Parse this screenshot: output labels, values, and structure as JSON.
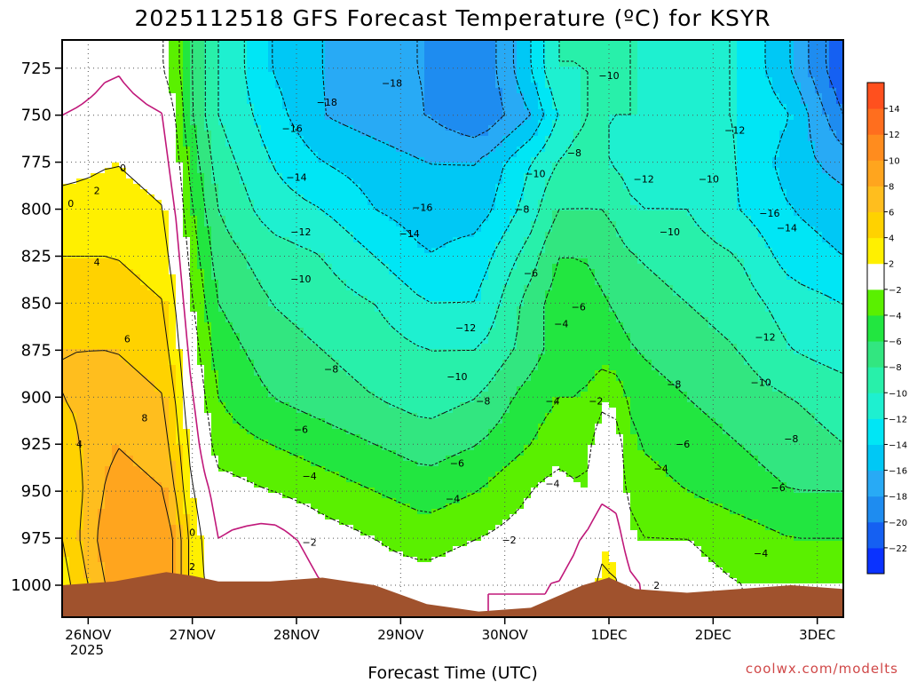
{
  "chart_data": {
    "type": "heatmap",
    "title": "2025112518 GFS Forecast Temperature (ºC) for KSYR",
    "xlabel": "Forecast Time (UTC)",
    "ylabel": "",
    "credit": "coolwx.com/modelts",
    "x_ticks": [
      "26NOV",
      "27NOV",
      "28NOV",
      "29NOV",
      "30NOV",
      "1DEC",
      "2DEC",
      "3DEC"
    ],
    "x_tick_hours": [
      6,
      30,
      54,
      78,
      102,
      126,
      150,
      174
    ],
    "x_year_label": "2025",
    "x_range_hours": [
      0,
      180
    ],
    "y_ticks": [
      725,
      750,
      775,
      800,
      825,
      850,
      875,
      900,
      925,
      950,
      975,
      1000
    ],
    "y_range_hpa": [
      710,
      1017
    ],
    "y_axis_inverted": true,
    "grid": true,
    "colorbar": {
      "levels": [
        -24,
        -22,
        -20,
        -18,
        -16,
        -14,
        -12,
        -10,
        -8,
        -6,
        -4,
        -2,
        2,
        4,
        6,
        8,
        10,
        12,
        14,
        16
      ],
      "tick_labels": [
        "-22",
        "-20",
        "-18",
        "-16",
        "-14",
        "-12",
        "-10",
        "-8",
        "-6",
        "-4",
        "-2",
        "2",
        "4",
        "6",
        "8",
        "10",
        "12",
        "14"
      ],
      "colors": [
        "#0a32ff",
        "#1560f2",
        "#1e8cf0",
        "#28aaf5",
        "#00c8f5",
        "#00e6f5",
        "#1ef0d0",
        "#28f0aa",
        "#32e680",
        "#22e640",
        "#5af000",
        "#ffffff",
        "#fff000",
        "#ffd200",
        "#ffbe1e",
        "#ffa51e",
        "#ff8c1e",
        "#ff6e1e",
        "#ff501e"
      ],
      "placement": "right"
    },
    "hours": [
      0,
      12,
      24,
      30,
      36,
      48,
      60,
      72,
      84,
      96,
      108,
      114,
      120,
      126,
      132,
      144,
      156,
      168,
      180
    ],
    "pressure_levels": [
      725,
      750,
      775,
      800,
      825,
      850,
      875,
      900,
      925,
      950,
      975,
      1000
    ],
    "temperature": [
      [
        -2,
        0,
        -2,
        -6,
        -10,
        -14,
        -16,
        -18,
        -18,
        -20,
        -14,
        -10,
        -10,
        -10,
        -10,
        -12,
        -12,
        -16,
        -22
      ],
      [
        0,
        1,
        0,
        -6,
        -10,
        -13,
        -16,
        -17,
        -18,
        -20,
        -16,
        -12,
        -10,
        -10,
        -10,
        -12,
        -12,
        -14,
        -20
      ],
      [
        1,
        2,
        1,
        -5,
        -9,
        -12,
        -14,
        -15,
        -16,
        -16,
        -12,
        -10,
        -9,
        -10,
        -11,
        -11,
        -12,
        -15,
        -17
      ],
      [
        3,
        3,
        2,
        -4,
        -8,
        -11,
        -12,
        -14,
        -15,
        -15,
        -11,
        -8,
        -8,
        -8,
        -10,
        -10,
        -12,
        -14,
        -15
      ],
      [
        4,
        4,
        3,
        -3,
        -7,
        -9,
        -10,
        -12,
        -14,
        -13,
        -9,
        -6,
        -6,
        -7,
        -8,
        -9,
        -10,
        -13,
        -14
      ],
      [
        5,
        5,
        4,
        -2,
        -6,
        -8,
        -9,
        -10,
        -12,
        -12,
        -7,
        -5,
        -5,
        -6,
        -7,
        -8,
        -9,
        -11,
        -12
      ],
      [
        6,
        6,
        5,
        -1,
        -5,
        -7,
        -8,
        -9,
        -10,
        -10,
        -7,
        -5,
        -5,
        -5,
        -6,
        -7,
        -8,
        -10,
        -11
      ],
      [
        6,
        7,
        6,
        0,
        -4,
        -6,
        -7,
        -8,
        -9,
        -8,
        -5,
        -4,
        -4,
        -2,
        -5,
        -6,
        -7,
        -8,
        -9
      ],
      [
        5,
        8,
        7,
        1,
        -3,
        -4,
        -5,
        -6,
        -7,
        -6,
        -4,
        -3,
        -3,
        0,
        -4,
        -5,
        -6,
        -7,
        -8
      ],
      [
        4,
        9,
        8,
        2,
        -1,
        -2,
        -3,
        -4,
        -5,
        -4,
        -2,
        -1,
        -2,
        0,
        -3,
        -4,
        -5,
        -6,
        -6
      ],
      [
        4,
        10,
        10,
        3,
        0,
        1,
        -1,
        -2,
        -3,
        -2,
        -1,
        -1,
        0,
        2,
        -2,
        -2,
        -3,
        -4,
        -4
      ],
      [
        3,
        9,
        10,
        3,
        1,
        2,
        0,
        -1,
        -1,
        0,
        0,
        0,
        1,
        3,
        0,
        -1,
        -2,
        -2,
        -2
      ]
    ],
    "surface_pressure_hpa": [
      1000,
      998,
      993,
      995,
      998,
      998,
      996,
      1000,
      1010,
      1014,
      1012,
      1006,
      1000,
      996,
      1002,
      1004,
      1002,
      1000,
      1002
    ],
    "contour_labels": [
      {
        "text": "0",
        "h": 14,
        "p": 778
      },
      {
        "text": "2",
        "h": 8,
        "p": 790
      },
      {
        "text": "0",
        "h": 2,
        "p": 797
      },
      {
        "text": "4",
        "h": 8,
        "p": 828
      },
      {
        "text": "6",
        "h": 15,
        "p": 869
      },
      {
        "text": "8",
        "h": 19,
        "p": 911
      },
      {
        "text": "4",
        "h": 4,
        "p": 925
      },
      {
        "text": "0",
        "h": 30,
        "p": 972
      },
      {
        "text": "2",
        "h": 30,
        "p": 990
      },
      {
        "text": "-18",
        "h": 61,
        "p": 743
      },
      {
        "text": "-18",
        "h": 76,
        "p": 733
      },
      {
        "text": "-16",
        "h": 53,
        "p": 757
      },
      {
        "text": "-14",
        "h": 54,
        "p": 783
      },
      {
        "text": "-12",
        "h": 55,
        "p": 812
      },
      {
        "text": "-10",
        "h": 55,
        "p": 837
      },
      {
        "text": "-8",
        "h": 62,
        "p": 885
      },
      {
        "text": "-6",
        "h": 55,
        "p": 917
      },
      {
        "text": "-4",
        "h": 57,
        "p": 942
      },
      {
        "text": "-2",
        "h": 57,
        "p": 977
      },
      {
        "text": "-16",
        "h": 83,
        "p": 799
      },
      {
        "text": "-14",
        "h": 80,
        "p": 813
      },
      {
        "text": "-12",
        "h": 93,
        "p": 863
      },
      {
        "text": "-10",
        "h": 91,
        "p": 889
      },
      {
        "text": "-8",
        "h": 97,
        "p": 902
      },
      {
        "text": "-6",
        "h": 91,
        "p": 935
      },
      {
        "text": "-4",
        "h": 90,
        "p": 954
      },
      {
        "text": "-2",
        "h": 103,
        "p": 976
      },
      {
        "text": "-10",
        "h": 126,
        "p": 729
      },
      {
        "text": "-8",
        "h": 118,
        "p": 770
      },
      {
        "text": "-10",
        "h": 109,
        "p": 781
      },
      {
        "text": "-8",
        "h": 106,
        "p": 800
      },
      {
        "text": "-6",
        "h": 108,
        "p": 834
      },
      {
        "text": "-4",
        "h": 115,
        "p": 861
      },
      {
        "text": "-6",
        "h": 119,
        "p": 852
      },
      {
        "text": "-2",
        "h": 123,
        "p": 902
      },
      {
        "text": "-4",
        "h": 113,
        "p": 902
      },
      {
        "text": "-4",
        "h": 113,
        "p": 946
      },
      {
        "text": "-12",
        "h": 134,
        "p": 784
      },
      {
        "text": "-10",
        "h": 140,
        "p": 812
      },
      {
        "text": "-12",
        "h": 155,
        "p": 758
      },
      {
        "text": "-10",
        "h": 149,
        "p": 784
      },
      {
        "text": "-16",
        "h": 163,
        "p": 802
      },
      {
        "text": "-14",
        "h": 167,
        "p": 810
      },
      {
        "text": "-12",
        "h": 162,
        "p": 868
      },
      {
        "text": "-10",
        "h": 161,
        "p": 892
      },
      {
        "text": "-8",
        "h": 141,
        "p": 893
      },
      {
        "text": "-8",
        "h": 168,
        "p": 922
      },
      {
        "text": "-6",
        "h": 143,
        "p": 925
      },
      {
        "text": "-4",
        "h": 138,
        "p": 938
      },
      {
        "text": "-6",
        "h": 165,
        "p": 948
      },
      {
        "text": "-4",
        "h": 161,
        "p": 983
      },
      {
        "text": "2",
        "h": 137,
        "p": 1000
      }
    ]
  }
}
